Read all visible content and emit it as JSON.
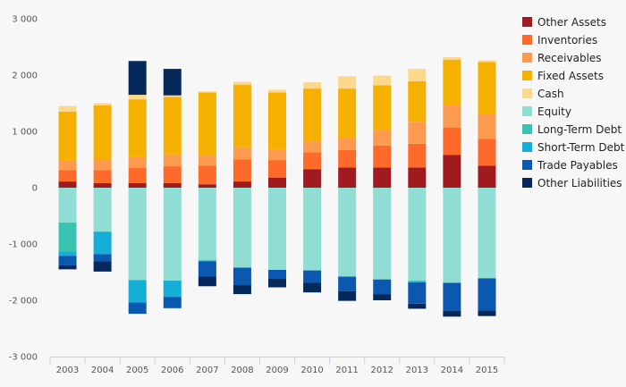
{
  "chart_data": {
    "type": "bar",
    "stacked": true,
    "categories": [
      "2003",
      "2004",
      "2005",
      "2006",
      "2007",
      "2008",
      "2009",
      "2010",
      "2011",
      "2012",
      "2013",
      "2014",
      "2015"
    ],
    "ylim": [
      -3000,
      3000
    ],
    "yticks": [
      3000,
      2000,
      1000,
      0,
      -1000,
      -2000,
      -3000
    ],
    "ytick_labels": [
      "3 000",
      "2 000",
      "1 000",
      "0",
      "-1 000",
      "-2 000",
      "-3 000"
    ],
    "grid": false,
    "legend_position": "right",
    "series": [
      {
        "name": "Other Assets",
        "color": "#a01b1f",
        "values": [
          110,
          80,
          80,
          80,
          60,
          110,
          180,
          330,
          360,
          360,
          360,
          580,
          390
        ]
      },
      {
        "name": "Inventories",
        "color": "#fd6a2a",
        "values": [
          200,
          230,
          270,
          300,
          330,
          390,
          310,
          300,
          310,
          390,
          420,
          490,
          480
        ]
      },
      {
        "name": "Receivables",
        "color": "#fc9a4f",
        "values": [
          180,
          190,
          200,
          210,
          180,
          220,
          190,
          190,
          210,
          270,
          390,
          400,
          440
        ]
      },
      {
        "name": "Fixed Assets",
        "color": "#f5b000",
        "values": [
          860,
          960,
          1020,
          1020,
          1120,
          1110,
          1010,
          940,
          880,
          800,
          720,
          800,
          920
        ]
      },
      {
        "name": "Cash",
        "color": "#fed88a",
        "values": [
          100,
          40,
          80,
          30,
          20,
          50,
          50,
          110,
          220,
          170,
          220,
          50,
          30
        ]
      },
      {
        "name": "Equity",
        "color": "#8fddd3",
        "values": [
          -620,
          -780,
          -1640,
          -1650,
          -1290,
          -1420,
          -1460,
          -1470,
          -1580,
          -1630,
          -1650,
          -1690,
          -1610
        ]
      },
      {
        "name": "Long-Term Debt",
        "color": "#38c4b0",
        "values": [
          -510,
          0,
          0,
          0,
          0,
          0,
          0,
          0,
          0,
          0,
          -30,
          0,
          0
        ]
      },
      {
        "name": "Short-Term Debt",
        "color": "#14aed6",
        "values": [
          -80,
          -400,
          -400,
          -290,
          -20,
          0,
          0,
          0,
          0,
          0,
          0,
          0,
          0
        ]
      },
      {
        "name": "Trade Payables",
        "color": "#0b58b0",
        "values": [
          -170,
          -130,
          -200,
          -200,
          -270,
          -310,
          -160,
          -220,
          -260,
          -260,
          -380,
          -500,
          -570
        ]
      },
      {
        "name": "Other Liabilities",
        "color": "#04295a",
        "values": [
          -70,
          -180,
          0,
          0,
          -170,
          -160,
          -150,
          -170,
          -170,
          -110,
          -90,
          -100,
          -100
        ]
      }
    ],
    "top_extra": {
      "name": "Other Liabilities",
      "values": [
        0,
        0,
        600,
        470,
        0,
        0,
        0,
        0,
        0,
        0,
        0,
        0,
        0
      ]
    }
  }
}
